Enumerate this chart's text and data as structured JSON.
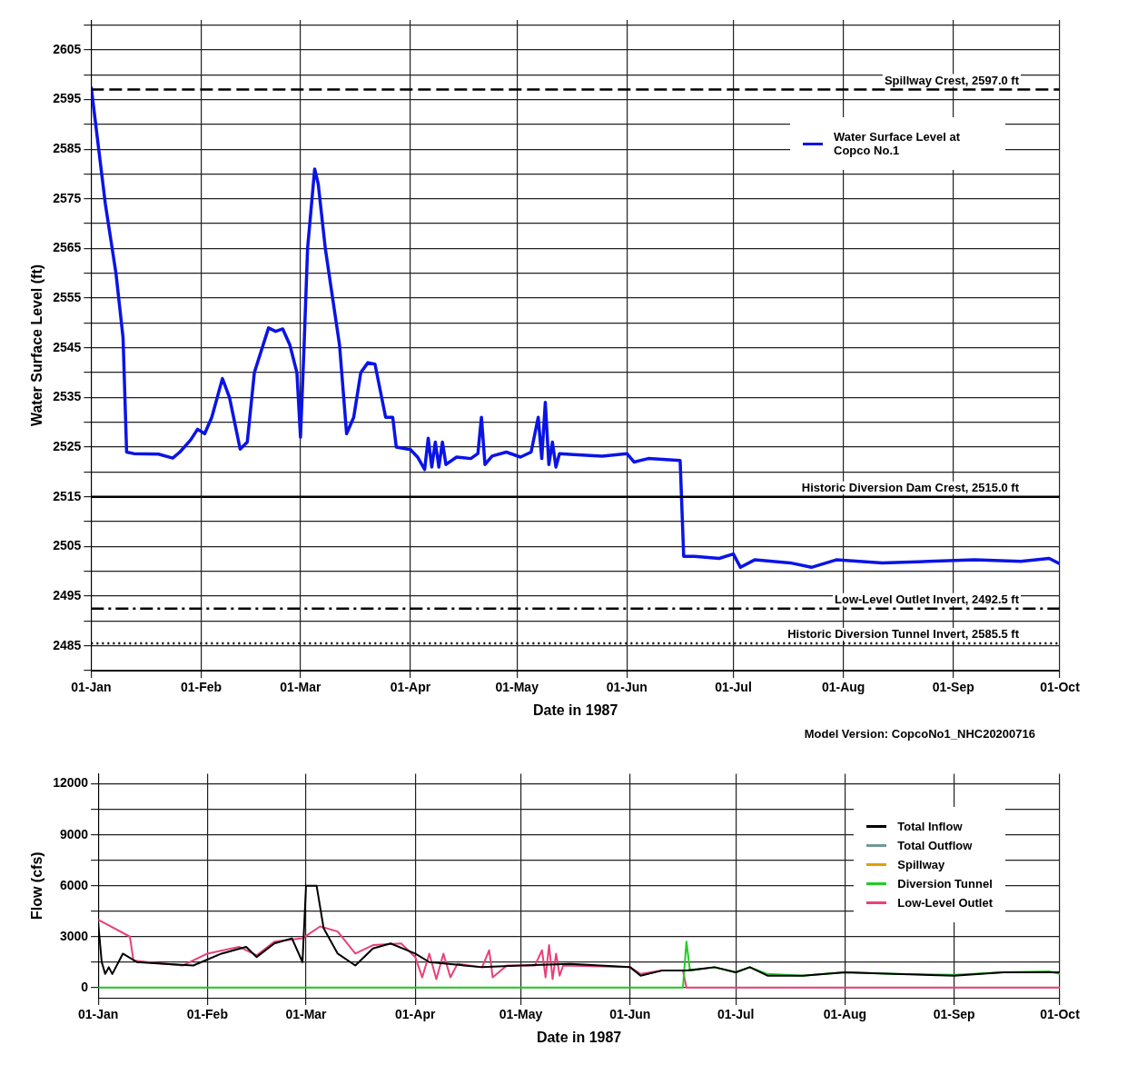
{
  "chart_data": [
    {
      "type": "line",
      "xlabel": "Date in 1987",
      "ylabel": "Water Surface Level (ft)",
      "grid": true,
      "legend": "top right",
      "xlim": [
        "1987-01-01",
        "1987-10-01"
      ],
      "xticks": [
        {
          "value": "1987-01-01",
          "label": "01-Jan"
        },
        {
          "value": "1987-02-01",
          "label": "01-Feb"
        },
        {
          "value": "1987-03-01",
          "label": "01-Mar"
        },
        {
          "value": "1987-04-01",
          "label": "01-Apr"
        },
        {
          "value": "1987-05-01",
          "label": "01-May"
        },
        {
          "value": "1987-06-01",
          "label": "01-Jun"
        },
        {
          "value": "1987-07-01",
          "label": "01-Jul"
        },
        {
          "value": "1987-08-01",
          "label": "01-Aug"
        },
        {
          "value": "1987-09-01",
          "label": "01-Sep"
        },
        {
          "value": "1987-10-01",
          "label": "01-Oct"
        }
      ],
      "ylim": [
        2480,
        2611
      ],
      "yticks": [
        {
          "value": 2480,
          "label": null
        },
        2485,
        {
          "value": 2490,
          "label": null
        },
        2495,
        {
          "value": 2500,
          "label": null
        },
        2505,
        {
          "value": 2510,
          "label": null
        },
        2515,
        {
          "value": 2520,
          "label": null
        },
        2525,
        {
          "value": 2530,
          "label": null
        },
        2535,
        {
          "value": 2540,
          "label": null
        },
        2545,
        {
          "value": 2550,
          "label": null
        },
        2555,
        {
          "value": 2560,
          "label": null
        },
        2565,
        {
          "value": 2570,
          "label": null
        },
        2575,
        {
          "value": 2580,
          "label": null
        },
        2585,
        {
          "value": 2590,
          "label": null
        },
        2595,
        {
          "value": 2600,
          "label": null
        },
        2605,
        {
          "value": 2610,
          "label": null
        }
      ],
      "series": [
        {
          "name": "Water Surface Level at Copco No.1",
          "color": "#0a14e6",
          "x": [
            "1987-01-01",
            "1987-01-05",
            "1987-01-08",
            "1987-01-10",
            "1987-01-11",
            "1987-01-13",
            "1987-01-20",
            "1987-01-24",
            "1987-01-26",
            "1987-01-29",
            "1987-01-31",
            "1987-02-02",
            "1987-02-04",
            "1987-02-07",
            "1987-02-09",
            "1987-02-12",
            "1987-02-14",
            "1987-02-16",
            "1987-02-20",
            "1987-02-22",
            "1987-02-24",
            "1987-02-26",
            "1987-02-28",
            "1987-03-01",
            "1987-03-02",
            "1987-03-03",
            "1987-03-05",
            "1987-03-06",
            "1987-03-08",
            "1987-03-12",
            "1987-03-14",
            "1987-03-16",
            "1987-03-18",
            "1987-03-20",
            "1987-03-22",
            "1987-03-25",
            "1987-03-27",
            "1987-03-28",
            "1987-04-01",
            "1987-04-03",
            "1987-04-05",
            "1987-04-06",
            "1987-04-07",
            "1987-04-08",
            "1987-04-09",
            "1987-04-10",
            "1987-04-11",
            "1987-04-14",
            "1987-04-18",
            "1987-04-20",
            "1987-04-21",
            "1987-04-22",
            "1987-04-24",
            "1987-04-28",
            "1987-05-02",
            "1987-05-05",
            "1987-05-07",
            "1987-05-08",
            "1987-05-09",
            "1987-05-10",
            "1987-05-11",
            "1987-05-12",
            "1987-05-13",
            "1987-05-17",
            "1987-05-25",
            "1987-06-01",
            "1987-06-03",
            "1987-06-07",
            "1987-06-16",
            "1987-06-17",
            "1987-06-20",
            "1987-06-27",
            "1987-07-01",
            "1987-07-03",
            "1987-07-07",
            "1987-07-17",
            "1987-07-23",
            "1987-07-30",
            "1987-08-12",
            "1987-08-25",
            "1987-09-07",
            "1987-09-20",
            "1987-09-28",
            "1987-10-01"
          ],
          "values": [
            2597.6,
            2574,
            2560,
            2547,
            2524,
            2523.7,
            2523.6,
            2522.8,
            2524,
            2526.4,
            2528.6,
            2527.7,
            2531,
            2538.8,
            2535,
            2524.6,
            2526,
            2540,
            2549,
            2548.3,
            2548.8,
            2545.6,
            2540,
            2527,
            2545,
            2565,
            2581,
            2578,
            2565,
            2545.6,
            2527.7,
            2531,
            2540,
            2542,
            2541.7,
            2531,
            2531,
            2525,
            2524.5,
            2523,
            2520.5,
            2526.8,
            2521,
            2526,
            2521,
            2526,
            2521.5,
            2523,
            2522.7,
            2523.7,
            2531,
            2521.5,
            2523.2,
            2524,
            2523,
            2524,
            2531,
            2522.7,
            2534,
            2521.5,
            2526,
            2521,
            2523.7,
            2523.5,
            2523.2,
            2523.7,
            2522,
            2522.7,
            2522.3,
            2503,
            2503,
            2502.6,
            2503.5,
            2500.8,
            2502.3,
            2501.7,
            2500.8,
            2502.3,
            2501.7,
            2502,
            2502.3,
            2502,
            2502.6,
            2501.5
          ]
        }
      ],
      "ref_lines": [
        {
          "axis": "y",
          "value": 2597,
          "label": "Spillway Crest, 2597.0 ft",
          "line_style": "dashed",
          "color": "#000000"
        },
        {
          "axis": "y",
          "value": 2515,
          "label": "Historic Diversion Dam Crest, 2515.0 ft",
          "line_style": "solid",
          "color": "#000000"
        },
        {
          "axis": "y",
          "value": 2492.5,
          "label": "Low-Level Outlet Invert, 2492.5 ft",
          "line_style": "dashdot",
          "color": "#000000"
        },
        {
          "axis": "y",
          "value": 2485.5,
          "label": "Historic Diversion Tunnel Invert, 2585.5 ft",
          "line_style": "dotted",
          "color": "#000000"
        }
      ],
      "annotations": [
        "Model Version: CopcoNo1_NHC20200716"
      ]
    },
    {
      "type": "line",
      "xlabel": "Date in 1987",
      "ylabel": "Flow (cfs)",
      "grid": true,
      "legend": "top right",
      "xlim": [
        "1987-01-01",
        "1987-10-01"
      ],
      "xticks": [
        {
          "value": "1987-01-01",
          "label": "01-Jan"
        },
        {
          "value": "1987-02-01",
          "label": "01-Feb"
        },
        {
          "value": "1987-03-01",
          "label": "01-Mar"
        },
        {
          "value": "1987-04-01",
          "label": "01-Apr"
        },
        {
          "value": "1987-05-01",
          "label": "01-May"
        },
        {
          "value": "1987-06-01",
          "label": "01-Jun"
        },
        {
          "value": "1987-07-01",
          "label": "01-Jul"
        },
        {
          "value": "1987-08-01",
          "label": "01-Aug"
        },
        {
          "value": "1987-09-01",
          "label": "01-Sep"
        },
        {
          "value": "1987-10-01",
          "label": "01-Oct"
        }
      ],
      "ylim": [
        -600,
        12600
      ],
      "yticks": [
        0,
        {
          "value": 1500,
          "label": null
        },
        3000,
        {
          "value": 4500,
          "label": null
        },
        6000,
        {
          "value": 7500,
          "label": null
        },
        9000,
        {
          "value": 10500,
          "label": null
        },
        12000
      ],
      "series": [
        {
          "name": "Total Inflow",
          "color": "#000000",
          "x": [
            "1987-01-01",
            "1987-01-02",
            "1987-01-03",
            "1987-01-04",
            "1987-01-05",
            "1987-01-08",
            "1987-01-12",
            "1987-01-20",
            "1987-01-28",
            "1987-02-05",
            "1987-02-12",
            "1987-02-15",
            "1987-02-20",
            "1987-02-25",
            "1987-02-28",
            "1987-03-01",
            "1987-03-04",
            "1987-03-06",
            "1987-03-10",
            "1987-03-15",
            "1987-03-20",
            "1987-03-25",
            "1987-04-01",
            "1987-04-05",
            "1987-04-20",
            "1987-05-01",
            "1987-05-15",
            "1987-06-01",
            "1987-06-04",
            "1987-06-10",
            "1987-06-17",
            "1987-06-25",
            "1987-07-01",
            "1987-07-05",
            "1987-07-10",
            "1987-07-20",
            "1987-08-01",
            "1987-08-15",
            "1987-09-01",
            "1987-09-15",
            "1987-10-01"
          ],
          "values": [
            3800,
            1500,
            800,
            1200,
            800,
            2000,
            1500,
            1400,
            1300,
            2000,
            2400,
            1800,
            2600,
            2900,
            1500,
            6000,
            6000,
            3500,
            2000,
            1300,
            2300,
            2600,
            2000,
            1500,
            1200,
            1300,
            1400,
            1200,
            700,
            1000,
            1000,
            1200,
            900,
            1200,
            700,
            700,
            900,
            800,
            700,
            900,
            900
          ]
        },
        {
          "name": "Total Outflow",
          "color": "#6f9a98"
        },
        {
          "name": "Spillway",
          "color": "#e0a000"
        },
        {
          "name": "Diversion Tunnel",
          "color": "#22cc22",
          "x": [
            "1987-01-01",
            "1987-06-16",
            "1987-06-17",
            "1987-06-18",
            "1987-06-25",
            "1987-07-01",
            "1987-07-05",
            "1987-07-10",
            "1987-07-20",
            "1987-08-01",
            "1987-08-15",
            "1987-09-01",
            "1987-09-15",
            "1987-09-28",
            "1987-10-01"
          ],
          "values": [
            0,
            0,
            2700,
            1000,
            1200,
            900,
            1200,
            800,
            700,
            900,
            800,
            750,
            900,
            950,
            800
          ]
        },
        {
          "name": "Low-Level Outlet",
          "color": "#e8407a",
          "x": [
            "1987-01-01",
            "1987-01-10",
            "1987-01-11",
            "1987-01-15",
            "1987-01-25",
            "1987-02-01",
            "1987-02-10",
            "1987-02-15",
            "1987-02-20",
            "1987-02-28",
            "1987-03-05",
            "1987-03-10",
            "1987-03-15",
            "1987-03-20",
            "1987-03-28",
            "1987-04-01",
            "1987-04-03",
            "1987-04-05",
            "1987-04-07",
            "1987-04-09",
            "1987-04-11",
            "1987-04-13",
            "1987-04-20",
            "1987-04-22",
            "1987-04-23",
            "1987-04-27",
            "1987-05-05",
            "1987-05-07",
            "1987-05-08",
            "1987-05-09",
            "1987-05-10",
            "1987-05-11",
            "1987-05-12",
            "1987-05-13",
            "1987-06-01",
            "1987-06-04",
            "1987-06-10",
            "1987-06-16",
            "1987-06-17",
            "1987-10-01"
          ],
          "values": [
            4000,
            3000,
            1600,
            1500,
            1300,
            2000,
            2400,
            1900,
            2700,
            2900,
            3600,
            3300,
            2000,
            2500,
            2600,
            1800,
            600,
            2000,
            500,
            2000,
            600,
            1400,
            1200,
            2200,
            600,
            1300,
            1300,
            2200,
            600,
            2500,
            500,
            2000,
            700,
            1300,
            1200,
            800,
            1000,
            1000,
            0,
            0
          ]
        }
      ]
    }
  ]
}
